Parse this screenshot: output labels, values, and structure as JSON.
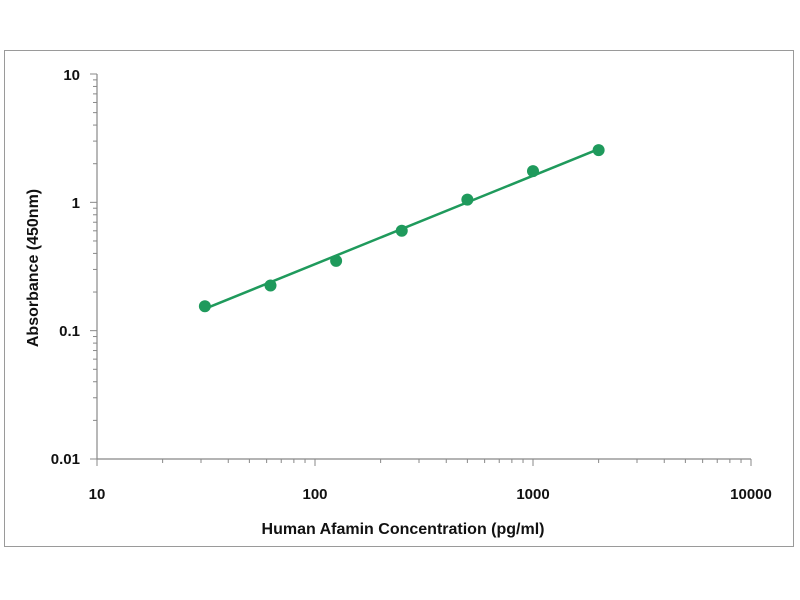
{
  "chart_data": {
    "type": "scatter",
    "title": "",
    "xlabel": "Human Afamin Concentration (pg/ml)",
    "ylabel": "Absorbance (450nm)",
    "x_scale": "log",
    "y_scale": "log",
    "xlim": [
      10,
      10000
    ],
    "ylim": [
      0.01,
      10
    ],
    "x_ticks": [
      "10",
      "100",
      "1000",
      "10000"
    ],
    "y_ticks": [
      "10",
      "1",
      "0.1",
      "0.01"
    ],
    "grid": false,
    "legend": "none",
    "series": [
      {
        "x": [
          31.25,
          62.5,
          125,
          250,
          500,
          1000,
          2000
        ],
        "y": [
          0.155,
          0.225,
          0.35,
          0.6,
          1.05,
          1.75,
          2.55
        ]
      }
    ],
    "fit_line": {
      "x": [
        31.25,
        2000
      ],
      "y": [
        0.148,
        2.6
      ]
    },
    "colors": {
      "series": "#1f9a5c",
      "axis": "#888888",
      "text": "#111111"
    }
  }
}
